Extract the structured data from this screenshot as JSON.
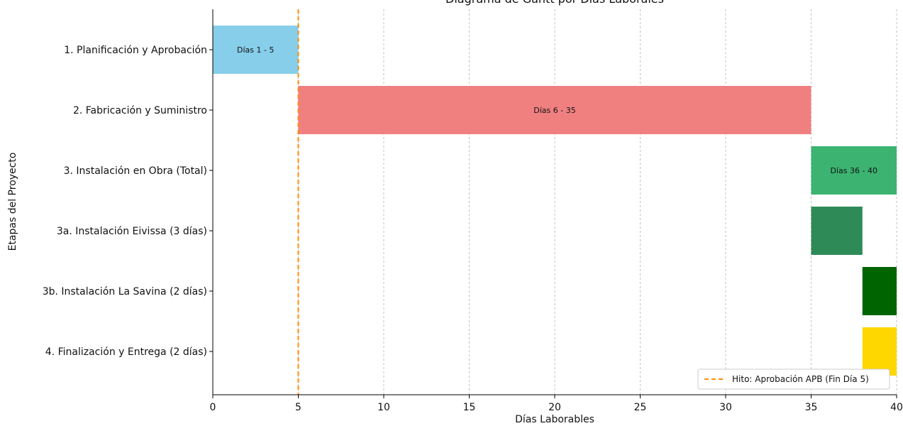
{
  "chart_data": {
    "type": "gantt",
    "title": "Diagrama de Gantt por Días Laborales",
    "xlabel": "Días Laborables",
    "ylabel": "Etapas del Proyecto",
    "xlim": [
      0,
      40
    ],
    "xticks": [
      0,
      5,
      10,
      15,
      20,
      25,
      30,
      35,
      40
    ],
    "grid": "vertical-dashed",
    "legend_position": "bottom-right",
    "tasks": [
      {
        "name": "1. Planificación y Aprobación",
        "start": 0,
        "end": 5,
        "label": "Días 1 - 5",
        "color": "#87CEEB"
      },
      {
        "name": "2. Fabricación y Suministro",
        "start": 5,
        "end": 35,
        "label": "Días 6 - 35",
        "color": "#F08080"
      },
      {
        "name": "3. Instalación en Obra (Total)",
        "start": 35,
        "end": 40,
        "label": "Días 36 - 40",
        "color": "#3CB371"
      },
      {
        "name": "3a. Instalación Eivissa (3 días)",
        "start": 35,
        "end": 38,
        "label": "",
        "color": "#2E8B57"
      },
      {
        "name": "3b. Instalación La Savina (2 días)",
        "start": 38,
        "end": 40,
        "label": "",
        "color": "#006400"
      },
      {
        "name": "4. Finalización y Entrega (2 días)",
        "start": 38,
        "end": 40,
        "label": "",
        "color": "#FFD700"
      }
    ],
    "milestone": {
      "x": 5,
      "label": "Hito: Aprobación APB (Fin Día 5)",
      "color": "#FF8C00"
    }
  }
}
